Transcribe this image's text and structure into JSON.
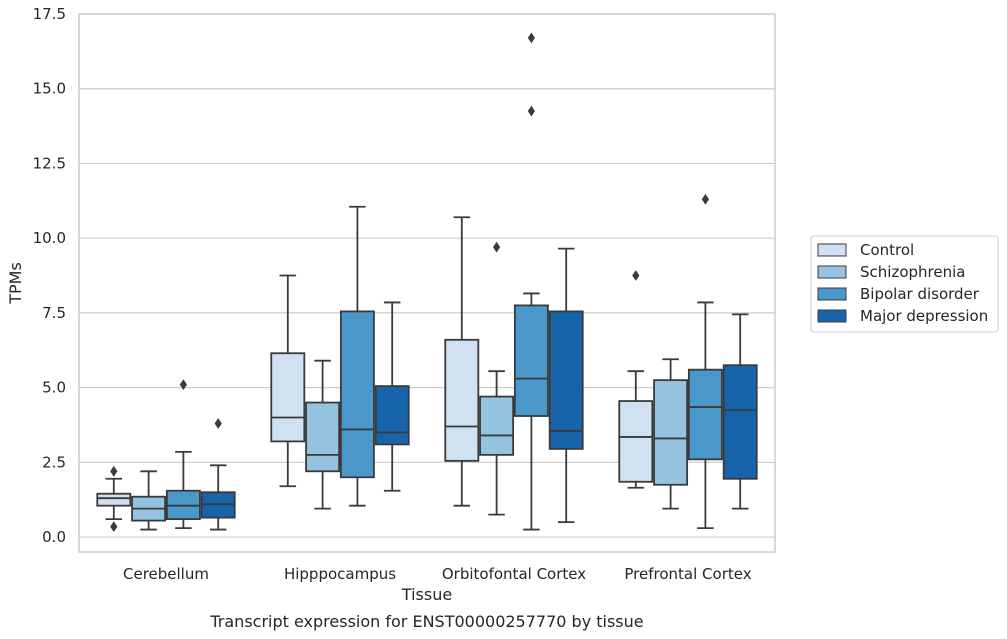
{
  "chart_data": {
    "type": "box",
    "title": "",
    "xlabel": "Tissue",
    "ylabel": "TPMs",
    "caption": "Transcript expression for ENST00000257770 by tissue",
    "ylim": [
      -0.5,
      17.5
    ],
    "yticks": [
      "0.0",
      "2.5",
      "5.0",
      "7.5",
      "10.0",
      "12.5",
      "15.0",
      "17.5"
    ],
    "grid": "horizontal",
    "legend_position": "right",
    "categories": [
      "Cerebellum",
      "Hipppocampus",
      "Orbitofontal Cortex",
      "Prefrontal Cortex"
    ],
    "series": [
      {
        "name": "Control",
        "color": "#d0e1f2",
        "boxes": [
          {
            "whislo": 0.6,
            "q1": 1.05,
            "med": 1.3,
            "q3": 1.45,
            "whishi": 1.95,
            "fliers": [
              2.2,
              0.35
            ]
          },
          {
            "whislo": 1.7,
            "q1": 3.2,
            "med": 4.0,
            "q3": 6.15,
            "whishi": 8.75,
            "fliers": []
          },
          {
            "whislo": 1.05,
            "q1": 2.55,
            "med": 3.7,
            "q3": 6.6,
            "whishi": 10.7,
            "fliers": []
          },
          {
            "whislo": 1.65,
            "q1": 1.85,
            "med": 3.35,
            "q3": 4.55,
            "whishi": 5.55,
            "fliers": [
              8.75
            ]
          }
        ]
      },
      {
        "name": "Schizophrenia",
        "color": "#94c4df",
        "boxes": [
          {
            "whislo": 0.25,
            "q1": 0.55,
            "med": 0.95,
            "q3": 1.35,
            "whishi": 2.2,
            "fliers": []
          },
          {
            "whislo": 0.95,
            "q1": 2.2,
            "med": 2.75,
            "q3": 4.5,
            "whishi": 5.9,
            "fliers": []
          },
          {
            "whislo": 0.75,
            "q1": 2.75,
            "med": 3.4,
            "q3": 4.7,
            "whishi": 5.55,
            "fliers": [
              9.7
            ]
          },
          {
            "whislo": 0.95,
            "q1": 1.75,
            "med": 3.3,
            "q3": 5.25,
            "whishi": 5.95,
            "fliers": []
          }
        ]
      },
      {
        "name": "Bipolar disorder",
        "color": "#4a98c9",
        "boxes": [
          {
            "whislo": 0.3,
            "q1": 0.6,
            "med": 1.05,
            "q3": 1.55,
            "whishi": 2.85,
            "fliers": [
              5.1
            ]
          },
          {
            "whislo": 1.05,
            "q1": 2.0,
            "med": 3.6,
            "q3": 7.55,
            "whishi": 11.05,
            "fliers": []
          },
          {
            "whislo": 0.25,
            "q1": 4.05,
            "med": 5.3,
            "q3": 7.75,
            "whishi": 8.15,
            "fliers": [
              14.25,
              16.7
            ]
          },
          {
            "whislo": 0.3,
            "q1": 2.6,
            "med": 4.35,
            "q3": 5.6,
            "whishi": 7.85,
            "fliers": [
              11.3
            ]
          }
        ]
      },
      {
        "name": "Major depression",
        "color": "#1764ab",
        "boxes": [
          {
            "whislo": 0.25,
            "q1": 0.65,
            "med": 1.1,
            "q3": 1.5,
            "whishi": 2.4,
            "fliers": [
              3.8
            ]
          },
          {
            "whislo": 1.55,
            "q1": 3.1,
            "med": 3.5,
            "q3": 5.05,
            "whishi": 7.85,
            "fliers": []
          },
          {
            "whislo": 0.5,
            "q1": 2.95,
            "med": 3.55,
            "q3": 7.55,
            "whishi": 9.65,
            "fliers": []
          },
          {
            "whislo": 0.95,
            "q1": 1.95,
            "med": 4.25,
            "q3": 5.75,
            "whishi": 7.45,
            "fliers": []
          }
        ]
      }
    ]
  }
}
